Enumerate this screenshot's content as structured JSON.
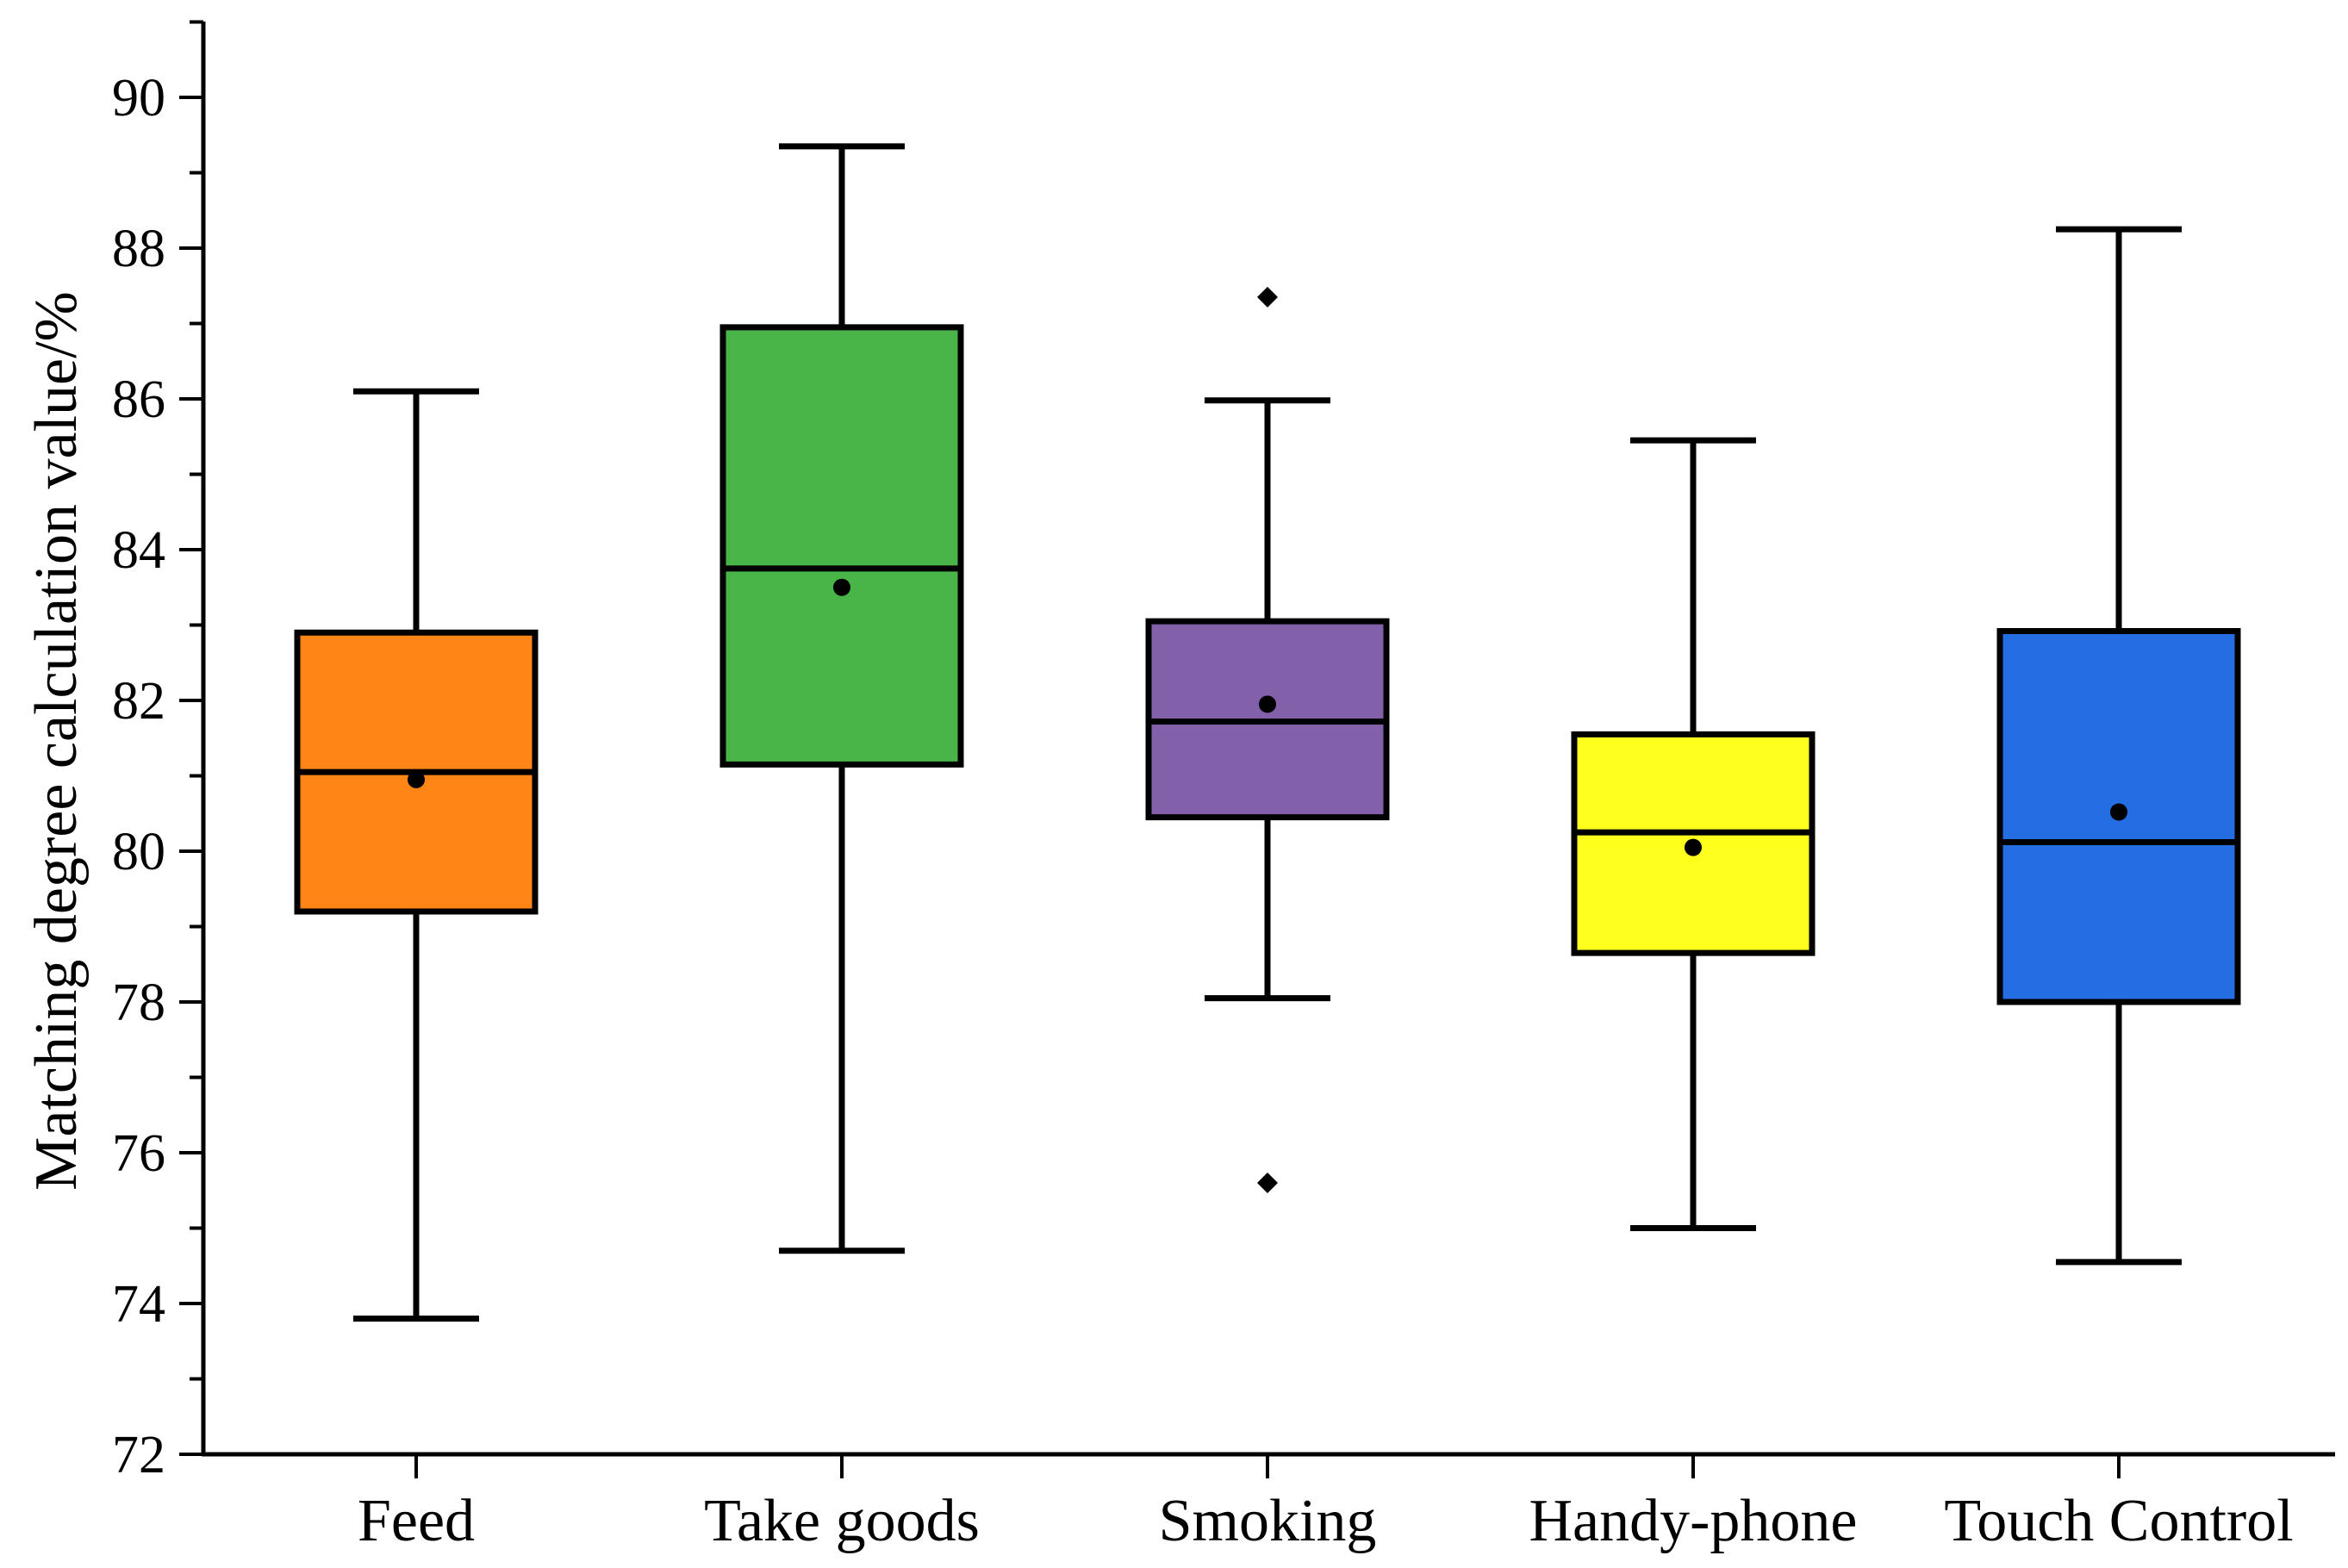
{
  "chart_data": {
    "type": "box",
    "title": "",
    "xlabel": "",
    "ylabel": "Matching degree calculation value/%",
    "ylim": [
      72,
      91
    ],
    "yticks": [
      "72",
      "74",
      "76",
      "78",
      "80",
      "82",
      "84",
      "86",
      "88",
      "90"
    ],
    "grid": false,
    "legend": "none",
    "categories": [
      "Feed",
      "Take goods",
      "Smoking",
      "Handy-phone",
      "Touch Control"
    ],
    "boxes": [
      {
        "category": "Feed",
        "min": 73.8,
        "q1": 79.2,
        "median": 81.05,
        "q3": 82.9,
        "max": 86.1,
        "mean": 80.95,
        "outliers": [],
        "color": "#FF8516"
      },
      {
        "category": "Take goods",
        "min": 74.7,
        "q1": 81.15,
        "median": 83.75,
        "q3": 86.95,
        "max": 89.35,
        "mean": 83.5,
        "outliers": [],
        "color": "#49B549"
      },
      {
        "category": "Smoking",
        "min": 78.05,
        "q1": 80.45,
        "median": 81.72,
        "q3": 83.05,
        "max": 85.98,
        "mean": 81.95,
        "outliers": [
          87.35,
          75.6
        ],
        "color": "#8260AA"
      },
      {
        "category": "Handy-phone",
        "min": 75.0,
        "q1": 78.65,
        "median": 80.25,
        "q3": 81.55,
        "max": 85.45,
        "mean": 80.05,
        "outliers": [],
        "color": "#FFFF1E"
      },
      {
        "category": "Touch Control",
        "min": 74.55,
        "q1": 78.0,
        "median": 80.12,
        "q3": 82.92,
        "max": 88.25,
        "mean": 80.52,
        "outliers": [],
        "color": "#256DE3"
      }
    ]
  }
}
